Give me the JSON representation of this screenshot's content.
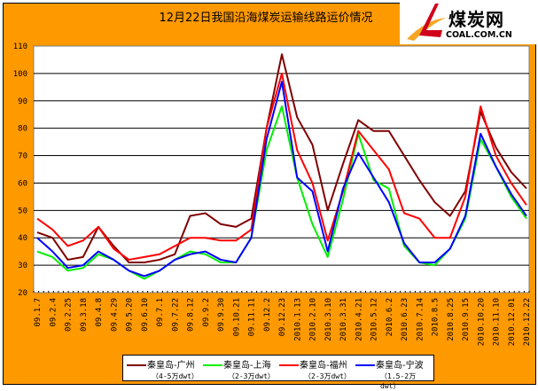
{
  "logo": {
    "cn": "煤炭网",
    "en": "COAL.COM.CN"
  },
  "chart_data": {
    "type": "line",
    "title": "12月22日我国沿海煤炭运输线路运价情况",
    "xlabel": "",
    "ylabel": "",
    "ylim": [
      20,
      110
    ],
    "yticks": [
      20,
      30,
      40,
      50,
      60,
      70,
      80,
      90,
      100,
      110
    ],
    "grid": true,
    "legend": "bottom",
    "categories": [
      "09.1.7",
      "09.2.4",
      "09.2.25",
      "09.3.18",
      "09.4.8",
      "09.4.29",
      "09.5.20",
      "09.6.10",
      "09.7.1",
      "09.7.22",
      "09.8.12",
      "09.9.2",
      "09.9.30",
      "09.10.21",
      "09.11.11",
      "09.12.2",
      "09.12.23",
      "2010.1.13",
      "2010.2.10",
      "2010.3.10",
      "2010.3.31",
      "2010.4.21",
      "2010.5.12",
      "2010.6.2",
      "2010.6.23",
      "2010.7.14",
      "2010.8.5",
      "2010.8.25",
      "2010.9.15",
      "2010.10.20",
      "2010.11.10",
      "2010.12.01",
      "2010.12.22"
    ],
    "series": [
      {
        "name": "秦皇岛-广州",
        "sub": "（4-5万dwt）",
        "color": "#800000",
        "values": [
          42,
          40,
          32,
          33,
          44,
          37,
          31,
          31,
          32,
          34,
          48,
          49,
          45,
          44,
          47,
          80,
          107,
          84,
          74,
          50,
          67,
          83,
          79,
          79,
          70,
          61,
          53,
          48,
          57,
          86,
          73,
          64,
          58
        ]
      },
      {
        "name": "秦皇岛-上海",
        "sub": "（2-3万dwt）",
        "color": "#00EE00",
        "values": [
          35,
          33,
          28,
          29,
          34,
          32,
          28,
          25,
          28,
          32,
          35,
          34,
          31,
          31,
          40,
          72,
          88,
          62,
          45,
          33,
          54,
          78,
          61,
          58,
          37,
          31,
          30,
          36,
          47,
          76,
          66,
          55,
          47
        ]
      },
      {
        "name": "秦皇岛-福州",
        "sub": "（2-3万dwt）",
        "color": "#FF0000",
        "values": [
          47,
          43,
          37,
          39,
          44,
          36,
          32,
          33,
          34,
          37,
          40,
          40,
          39,
          39,
          43,
          80,
          100,
          72,
          60,
          39,
          57,
          79,
          72,
          65,
          49,
          47,
          40,
          40,
          55,
          88,
          70,
          60,
          52
        ]
      },
      {
        "name": "秦皇岛-宁波",
        "sub": "（1.5-2万dwt）",
        "color": "#0000FF",
        "values": [
          40,
          35,
          29,
          30,
          35,
          32,
          28,
          26,
          28,
          32,
          34,
          35,
          32,
          31,
          40,
          76,
          97,
          62,
          57,
          35,
          58,
          71,
          62,
          53,
          38,
          31,
          31,
          36,
          48,
          78,
          66,
          56,
          48
        ]
      }
    ]
  }
}
